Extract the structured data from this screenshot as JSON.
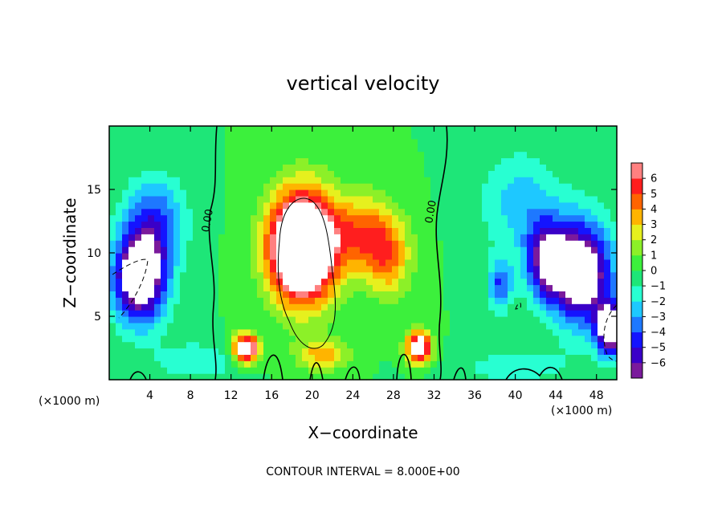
{
  "chart_data": {
    "type": "heatmap",
    "title": "vertical velocity",
    "xlabel": "X−coordinate",
    "ylabel": "Z−coordinate",
    "x_unit": "(×1000 m)",
    "y_unit": "(×1000 m)",
    "xlim": [
      0,
      50
    ],
    "ylim": [
      0,
      20
    ],
    "x_ticks": [
      4,
      8,
      12,
      16,
      20,
      24,
      28,
      32,
      36,
      40,
      44,
      48
    ],
    "y_ticks": [
      5,
      10,
      15
    ],
    "colorbar": {
      "min": -6,
      "max": 6,
      "ticks": [
        {
          "value": 6,
          "label": "6"
        },
        {
          "value": 5,
          "label": "5"
        },
        {
          "value": 4,
          "label": "4"
        },
        {
          "value": 3,
          "label": "3"
        },
        {
          "value": 2,
          "label": "2"
        },
        {
          "value": 1,
          "label": "1"
        },
        {
          "value": 0,
          "label": "0"
        },
        {
          "value": -1,
          "label": "−1"
        },
        {
          "value": -2,
          "label": "−2"
        },
        {
          "value": -3,
          "label": "−3"
        },
        {
          "value": -4,
          "label": "−4"
        },
        {
          "value": -5,
          "label": "−5"
        },
        {
          "value": -6,
          "label": "−6"
        }
      ],
      "colors": [
        "#7a1a9c",
        "#3a00c8",
        "#1414ff",
        "#1e78ff",
        "#1ec8ff",
        "#28ffd2",
        "#1ee678",
        "#3cf03c",
        "#8cf028",
        "#e6f01e",
        "#ffb400",
        "#ff6400",
        "#ff1e1e",
        "#ff8080"
      ]
    },
    "contour_labels": [
      {
        "text": "0.00",
        "x": 10.0,
        "z": 12.5
      },
      {
        "text": "0.00",
        "x": 32.0,
        "z": 13.2
      }
    ],
    "cells": [
      {
        "x": 19,
        "z": 10.5,
        "sx": 3.2,
        "sz": 4.2,
        "amp": 14
      },
      {
        "x": 25,
        "z": 11.5,
        "sx": 3.2,
        "sz": 3.0,
        "amp": 4.5
      },
      {
        "x": 27.5,
        "z": 9.5,
        "sx": 2.2,
        "sz": 3.0,
        "amp": 3.5
      },
      {
        "x": 13.5,
        "z": 2.5,
        "sx": 1.3,
        "sz": 1.1,
        "amp": 9
      },
      {
        "x": 30.5,
        "z": 2.6,
        "sx": 1.2,
        "sz": 1.2,
        "amp": 9
      },
      {
        "x": 21,
        "z": 2.0,
        "sx": 2.5,
        "sz": 1.2,
        "amp": 3.5
      },
      {
        "x": 3.0,
        "z": 8.0,
        "sx": 2.6,
        "sz": 3.5,
        "amp": -9
      },
      {
        "x": 4.5,
        "z": 12.5,
        "sx": 3.0,
        "sz": 3.5,
        "amp": -4
      },
      {
        "x": 46.5,
        "z": 8.5,
        "sx": 3.0,
        "sz": 4.0,
        "amp": -9
      },
      {
        "x": 43,
        "z": 9.5,
        "sx": 2.0,
        "sz": 3.0,
        "amp": -6
      },
      {
        "x": 49.5,
        "z": 4.0,
        "sx": 1.5,
        "sz": 2.0,
        "amp": -9
      },
      {
        "x": 38.5,
        "z": 7.5,
        "sx": 1.2,
        "sz": 2.0,
        "amp": -4
      },
      {
        "x": 40.5,
        "z": 14,
        "sx": 4.0,
        "sz": 4.0,
        "amp": -2.5
      },
      {
        "x": 8.5,
        "z": 1.5,
        "sx": 4.0,
        "sz": 1.5,
        "amp": -2.0
      },
      {
        "x": 40,
        "z": 1.0,
        "sx": 6.0,
        "sz": 1.5,
        "amp": -1.5
      }
    ],
    "contour_interval_note": "CONTOUR INTERVAL = 8.000E+00"
  }
}
